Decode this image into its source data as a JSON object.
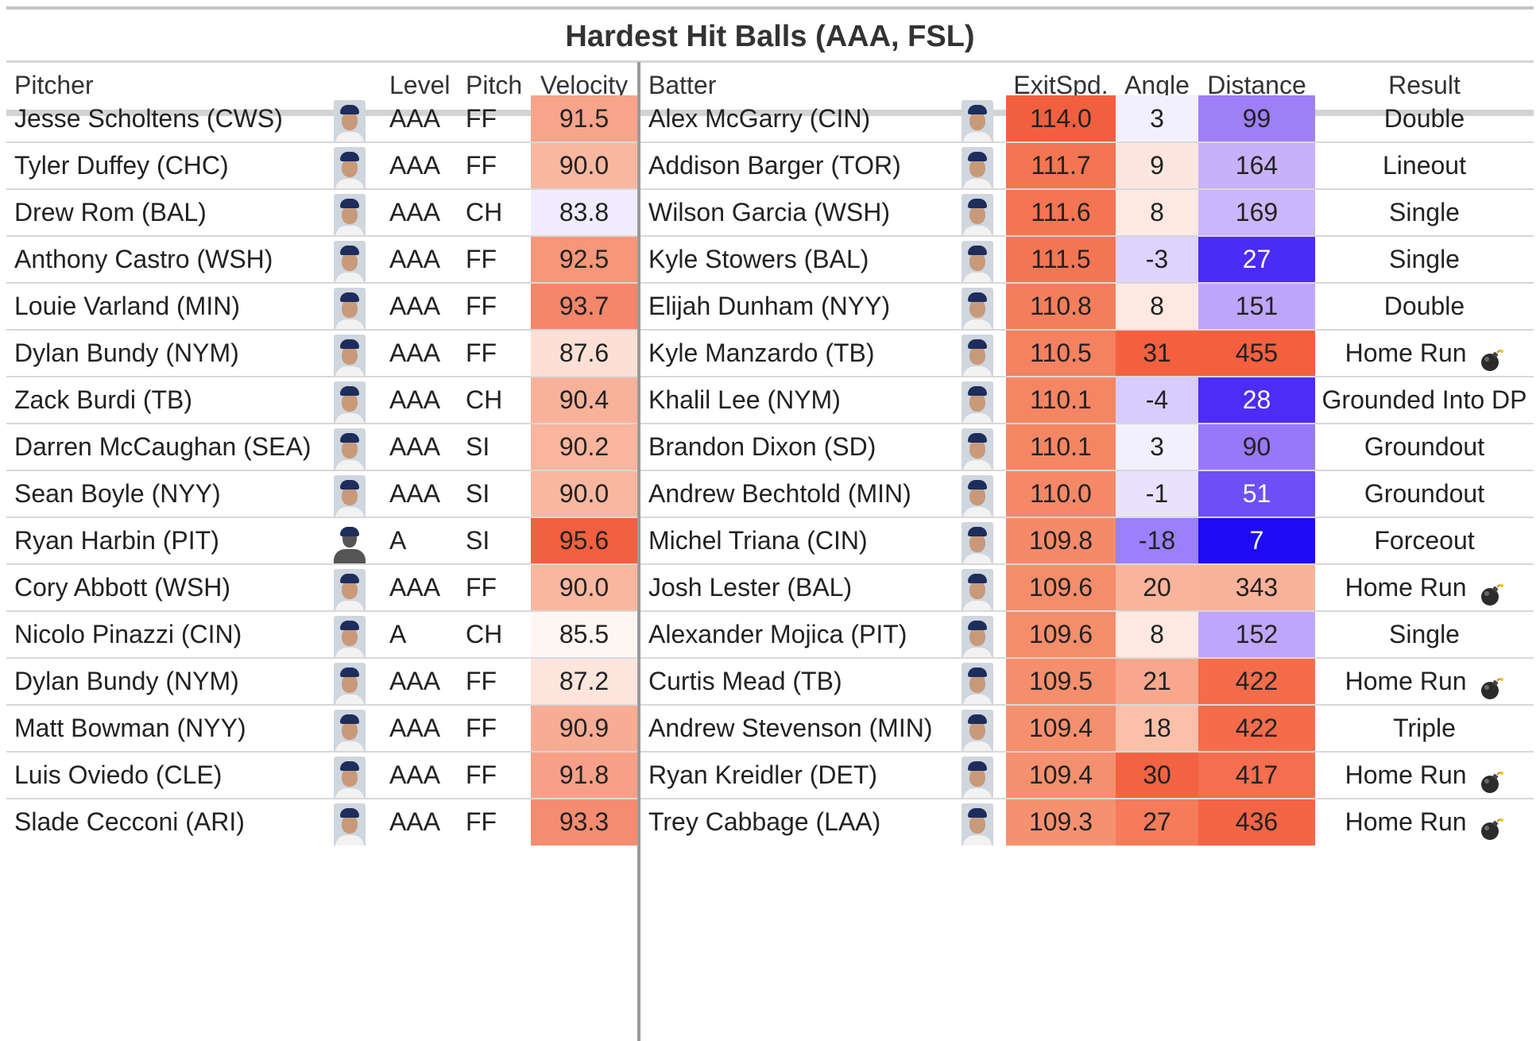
{
  "title": "Hardest Hit Balls (AAA, FSL)",
  "headers": {
    "pitcher": "Pitcher",
    "level": "Level",
    "pitch": "Pitch",
    "velocity": "Velocity",
    "batter": "Batter",
    "exitspd": "ExitSpd.",
    "angle": "Angle",
    "distance": "Distance",
    "result": "Result"
  },
  "rows": [
    {
      "pitcher": "Jesse Scholtens (CWS)",
      "level": "AAA",
      "pitch": "FF",
      "velocity": "91.5",
      "batter": "Alex McGarry (CIN)",
      "exitspd": "114.0",
      "angle": "3",
      "distance": "99",
      "result": "Double",
      "hr": false,
      "velo_bg": "#f7a48a",
      "exit_bg": "#f25f3e",
      "angle_bg": "#f2f0fe",
      "dist_bg": "#9f7ff8",
      "dist_fg": "#222222"
    },
    {
      "pitcher": "Tyler Duffey (CHC)",
      "level": "AAA",
      "pitch": "FF",
      "velocity": "90.0",
      "batter": "Addison Barger (TOR)",
      "exitspd": "111.7",
      "angle": "9",
      "distance": "164",
      "result": "Lineout",
      "hr": false,
      "velo_bg": "#f9b7a0",
      "exit_bg": "#f37552",
      "angle_bg": "#fde6df",
      "dist_bg": "#c7b1fb",
      "dist_fg": "#222222"
    },
    {
      "pitcher": "Drew Rom (BAL)",
      "level": "AAA",
      "pitch": "CH",
      "velocity": "83.8",
      "batter": "Wilson Garcia (WSH)",
      "exitspd": "111.6",
      "angle": "8",
      "distance": "169",
      "result": "Single",
      "hr": false,
      "velo_bg": "#f0ecfe",
      "exit_bg": "#f37553",
      "angle_bg": "#fde9e2",
      "dist_bg": "#cab6fb",
      "dist_fg": "#222222"
    },
    {
      "pitcher": "Anthony Castro (WSH)",
      "level": "AAA",
      "pitch": "FF",
      "velocity": "92.5",
      "batter": "Kyle Stowers (BAL)",
      "exitspd": "111.5",
      "angle": "-3",
      "distance": "27",
      "result": "Single",
      "hr": false,
      "velo_bg": "#f6977a",
      "exit_bg": "#f37654",
      "angle_bg": "#ddd3fd",
      "dist_bg": "#4b2bf6",
      "dist_fg": "#ffffff"
    },
    {
      "pitcher": "Louie Varland (MIN)",
      "level": "AAA",
      "pitch": "FF",
      "velocity": "93.7",
      "batter": "Elijah Dunham (NYY)",
      "exitspd": "110.8",
      "angle": "8",
      "distance": "151",
      "result": "Double",
      "hr": false,
      "velo_bg": "#f4866a",
      "exit_bg": "#f47e5c",
      "angle_bg": "#fde9e2",
      "dist_bg": "#bea5fa",
      "dist_fg": "#222222"
    },
    {
      "pitcher": "Dylan Bundy (NYM)",
      "level": "AAA",
      "pitch": "FF",
      "velocity": "87.6",
      "batter": "Kyle Manzardo (TB)",
      "exitspd": "110.5",
      "angle": "31",
      "distance": "455",
      "result": "Home Run",
      "hr": true,
      "velo_bg": "#fde0d5",
      "exit_bg": "#f48160",
      "angle_bg": "#f4603e",
      "dist_bg": "#f4603e",
      "dist_fg": "#222222"
    },
    {
      "pitcher": "Zack Burdi (TB)",
      "level": "AAA",
      "pitch": "CH",
      "velocity": "90.4",
      "batter": "Khalil Lee (NYM)",
      "exitspd": "110.1",
      "angle": "-4",
      "distance": "28",
      "result": "Grounded Into DP",
      "hr": false,
      "velo_bg": "#f9b29a",
      "exit_bg": "#f58664",
      "angle_bg": "#d8ccfd",
      "dist_bg": "#4c2cf6",
      "dist_fg": "#ffffff"
    },
    {
      "pitcher": "Darren McCaughan (SEA)",
      "level": "AAA",
      "pitch": "SI",
      "velocity": "90.2",
      "batter": "Brandon Dixon (SD)",
      "exitspd": "110.1",
      "angle": "3",
      "distance": "90",
      "result": "Groundout",
      "hr": false,
      "velo_bg": "#f9b59d",
      "exit_bg": "#f58664",
      "angle_bg": "#f2f0fe",
      "dist_bg": "#9878f8",
      "dist_fg": "#222222"
    },
    {
      "pitcher": "Sean Boyle (NYY)",
      "level": "AAA",
      "pitch": "SI",
      "velocity": "90.0",
      "batter": "Andrew Bechtold (MIN)",
      "exitspd": "110.0",
      "angle": "-1",
      "distance": "51",
      "result": "Groundout",
      "hr": false,
      "velo_bg": "#f9b7a0",
      "exit_bg": "#f58866",
      "angle_bg": "#e8e2fe",
      "dist_bg": "#6c4ff7",
      "dist_fg": "#ffffff"
    },
    {
      "pitcher": "Ryan Harbin (PIT)",
      "level": "A",
      "pitch": "SI",
      "velocity": "95.6",
      "batter": "Michel Triana (CIN)",
      "exitspd": "109.8",
      "angle": "-18",
      "distance": "7",
      "result": "Forceout",
      "hr": false,
      "velo_bg": "#f2603f",
      "exit_bg": "#f58a68",
      "angle_bg": "#9a80fa",
      "dist_bg": "#1f0af5",
      "dist_fg": "#ffffff"
    },
    {
      "pitcher": "Cory Abbott (WSH)",
      "level": "AAA",
      "pitch": "FF",
      "velocity": "90.0",
      "batter": "Josh Lester (BAL)",
      "exitspd": "109.6",
      "angle": "20",
      "distance": "343",
      "result": "Home Run",
      "hr": true,
      "velo_bg": "#f9b7a0",
      "exit_bg": "#f58d6b",
      "angle_bg": "#f9b49c",
      "dist_bg": "#f9b29a",
      "dist_fg": "#222222"
    },
    {
      "pitcher": "Nicolo Pinazzi (CIN)",
      "level": "A",
      "pitch": "CH",
      "velocity": "85.5",
      "batter": "Alexander Mojica (PIT)",
      "exitspd": "109.6",
      "angle": "8",
      "distance": "152",
      "result": "Single",
      "hr": false,
      "velo_bg": "#fdf6f3",
      "exit_bg": "#f58d6b",
      "angle_bg": "#fde9e2",
      "dist_bg": "#bfa6fa",
      "dist_fg": "#222222"
    },
    {
      "pitcher": "Dylan Bundy (NYM)",
      "level": "AAA",
      "pitch": "FF",
      "velocity": "87.2",
      "batter": "Curtis Mead (TB)",
      "exitspd": "109.5",
      "angle": "21",
      "distance": "422",
      "result": "Home Run",
      "hr": true,
      "velo_bg": "#fde5dc",
      "exit_bg": "#f58e6c",
      "angle_bg": "#f8a78d",
      "dist_bg": "#f56c4b",
      "dist_fg": "#222222"
    },
    {
      "pitcher": "Matt Bowman (NYY)",
      "level": "AAA",
      "pitch": "FF",
      "velocity": "90.9",
      "batter": "Andrew Stevenson (MIN)",
      "exitspd": "109.4",
      "angle": "18",
      "distance": "422",
      "result": "Triple",
      "hr": false,
      "velo_bg": "#f8ac93",
      "exit_bg": "#f5906e",
      "angle_bg": "#fac0aa",
      "dist_bg": "#f56c4b",
      "dist_fg": "#222222"
    },
    {
      "pitcher": "Luis Oviedo (CLE)",
      "level": "AAA",
      "pitch": "FF",
      "velocity": "91.8",
      "batter": "Ryan Kreidler (DET)",
      "exitspd": "109.4",
      "angle": "30",
      "distance": "417",
      "result": "Home Run",
      "hr": true,
      "velo_bg": "#f7a087",
      "exit_bg": "#f5906e",
      "angle_bg": "#f46341",
      "dist_bg": "#f56e4d",
      "dist_fg": "#222222"
    },
    {
      "pitcher": "Slade Cecconi (ARI)",
      "level": "AAA",
      "pitch": "FF",
      "velocity": "93.3",
      "batter": "Trey Cabbage (LAA)",
      "exitspd": "109.3",
      "angle": "27",
      "distance": "436",
      "result": "Home Run",
      "hr": true,
      "velo_bg": "#f58c70",
      "exit_bg": "#f69170",
      "angle_bg": "#f57b5a",
      "dist_bg": "#f46545",
      "dist_fg": "#222222"
    }
  ]
}
